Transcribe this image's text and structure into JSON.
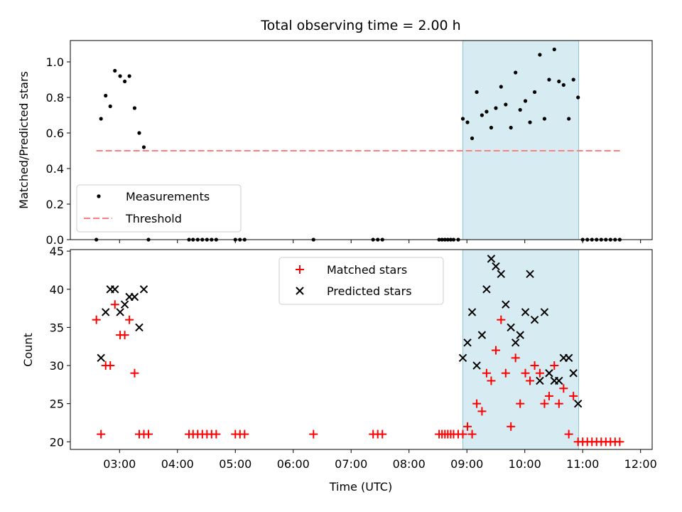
{
  "chart_data": {
    "type": "scatter",
    "title": "Total observing time = 2.00 h",
    "xlabel": "Time (UTC)",
    "x_unit": "hours UTC",
    "xlim": [
      2.15,
      12.2
    ],
    "xticks": [
      {
        "value": 3,
        "label": "03:00"
      },
      {
        "value": 4,
        "label": "04:00"
      },
      {
        "value": 5,
        "label": "05:00"
      },
      {
        "value": 6,
        "label": "06:00"
      },
      {
        "value": 7,
        "label": "07:00"
      },
      {
        "value": 8,
        "label": "08:00"
      },
      {
        "value": 9,
        "label": "09:00"
      },
      {
        "value": 10,
        "label": "10:00"
      },
      {
        "value": 11,
        "label": "11:00"
      },
      {
        "value": 12,
        "label": "12:00"
      }
    ],
    "highlight_span": [
      8.93,
      10.93
    ],
    "highlight_color": "#add8e6",
    "top": {
      "ylabel": "Matched/Predicted stars",
      "ylim": [
        0,
        1.12
      ],
      "yticks": [
        {
          "value": 0,
          "label": "0.0"
        },
        {
          "value": 0.2,
          "label": "0.2"
        },
        {
          "value": 0.4,
          "label": "0.4"
        },
        {
          "value": 0.6,
          "label": "0.6"
        },
        {
          "value": 0.8,
          "label": "0.8"
        },
        {
          "value": 1.0,
          "label": "1.0"
        }
      ],
      "legend": {
        "location": "lower-left",
        "measurements_label": "Measurements",
        "threshold_label": "Threshold"
      },
      "threshold": {
        "value": 0.5,
        "x_start": 2.6,
        "x_end": 11.67,
        "color": "#ff7f7f"
      },
      "measurements": {
        "color": "#000000",
        "x": [
          2.6,
          2.68,
          2.76,
          2.84,
          2.92,
          3.01,
          3.09,
          3.17,
          3.26,
          3.34,
          3.42,
          3.5,
          4.2,
          4.27,
          4.35,
          4.43,
          4.51,
          4.59,
          4.67,
          5.0,
          5.08,
          5.16,
          6.35,
          7.38,
          7.46,
          7.54,
          8.52,
          8.57,
          8.62,
          8.67,
          8.72,
          8.77,
          8.85,
          8.93,
          9.01,
          9.09,
          9.17,
          9.26,
          9.34,
          9.42,
          9.5,
          9.59,
          9.67,
          9.76,
          9.84,
          9.92,
          10.01,
          10.09,
          10.17,
          10.26,
          10.34,
          10.42,
          10.51,
          10.59,
          10.67,
          10.76,
          10.84,
          10.92,
          11.0,
          11.08,
          11.16,
          11.24,
          11.32,
          11.4,
          11.48,
          11.56,
          11.64
        ],
        "y": [
          0.0,
          0.68,
          0.81,
          0.75,
          0.95,
          0.92,
          0.89,
          0.92,
          0.74,
          0.6,
          0.52,
          0.0,
          0.0,
          0.0,
          0.0,
          0.0,
          0.0,
          0.0,
          0.0,
          0.0,
          0.0,
          0.0,
          0.0,
          0.0,
          0.0,
          0.0,
          0.0,
          0.0,
          0.0,
          0.0,
          0.0,
          0.0,
          0.0,
          0.68,
          0.66,
          0.57,
          0.83,
          0.7,
          0.72,
          0.63,
          0.74,
          0.86,
          0.76,
          0.63,
          0.94,
          0.73,
          0.78,
          0.66,
          0.83,
          1.04,
          0.68,
          0.9,
          1.07,
          0.89,
          0.87,
          0.68,
          0.9,
          0.8,
          0.0,
          0.0,
          0.0,
          0.0,
          0.0,
          0.0,
          0.0,
          0.0,
          0.0
        ]
      }
    },
    "bottom": {
      "ylabel": "Count",
      "ylim": [
        19,
        45.2
      ],
      "yticks": [
        {
          "value": 20,
          "label": "20"
        },
        {
          "value": 25,
          "label": "25"
        },
        {
          "value": 30,
          "label": "30"
        },
        {
          "value": 35,
          "label": "35"
        },
        {
          "value": 40,
          "label": "40"
        },
        {
          "value": 45,
          "label": "45"
        }
      ],
      "legend": {
        "location": "upper-center",
        "matched_label": "Matched stars",
        "predicted_label": "Predicted stars"
      },
      "matched": {
        "color": "#ff0000",
        "x": [
          2.6,
          2.68,
          2.76,
          2.84,
          2.92,
          3.01,
          3.09,
          3.17,
          3.26,
          3.34,
          3.42,
          3.5,
          4.2,
          4.27,
          4.35,
          4.43,
          4.51,
          4.59,
          4.67,
          5.0,
          5.08,
          5.16,
          6.35,
          7.38,
          7.46,
          7.54,
          8.52,
          8.57,
          8.62,
          8.67,
          8.72,
          8.77,
          8.85,
          8.93,
          9.01,
          9.09,
          9.17,
          9.26,
          9.34,
          9.42,
          9.5,
          9.59,
          9.67,
          9.76,
          9.84,
          9.92,
          10.01,
          10.09,
          10.17,
          10.26,
          10.34,
          10.42,
          10.51,
          10.59,
          10.67,
          10.76,
          10.84,
          10.92,
          11.0,
          11.08,
          11.16,
          11.24,
          11.32,
          11.4,
          11.48,
          11.56,
          11.64
        ],
        "y": [
          36,
          21,
          30,
          30,
          38,
          34,
          34,
          36,
          29,
          21,
          21,
          21,
          21,
          21,
          21,
          21,
          21,
          21,
          21,
          21,
          21,
          21,
          21,
          21,
          21,
          21,
          21,
          21,
          21,
          21,
          21,
          21,
          21,
          21,
          22,
          21,
          25,
          24,
          29,
          28,
          32,
          36,
          29,
          22,
          31,
          25,
          29,
          28,
          30,
          29,
          25,
          26,
          30,
          25,
          27,
          21,
          26,
          20,
          20,
          20,
          20,
          20,
          20,
          20,
          20,
          20,
          20
        ]
      },
      "predicted": {
        "color": "#000000",
        "x": [
          2.68,
          2.76,
          2.84,
          2.92,
          3.01,
          3.09,
          3.17,
          3.26,
          3.34,
          3.42,
          8.93,
          9.01,
          9.09,
          9.17,
          9.26,
          9.34,
          9.42,
          9.5,
          9.59,
          9.67,
          9.76,
          9.84,
          9.92,
          10.01,
          10.09,
          10.17,
          10.26,
          10.34,
          10.42,
          10.51,
          10.59,
          10.67,
          10.76,
          10.84,
          10.92
        ],
        "y": [
          31,
          37,
          40,
          40,
          37,
          38,
          39,
          39,
          35,
          40,
          31,
          33,
          37,
          30,
          34,
          40,
          44,
          43,
          42,
          38,
          35,
          33,
          34,
          37,
          42,
          36,
          28,
          37,
          29,
          28,
          28,
          31,
          31,
          29,
          25
        ]
      }
    }
  }
}
